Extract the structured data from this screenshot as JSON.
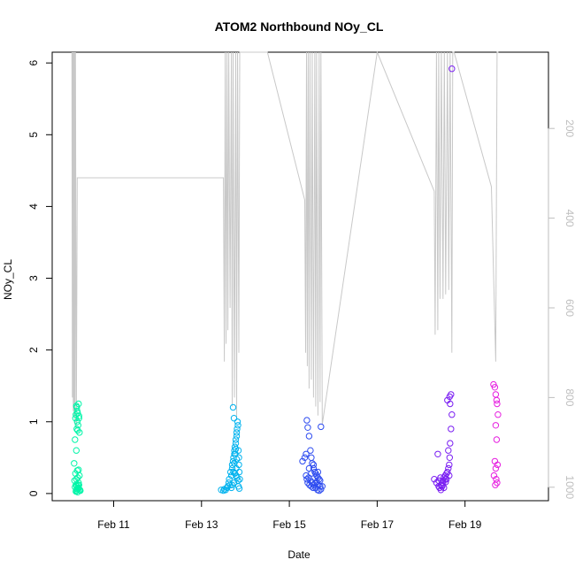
{
  "chart_data": {
    "type": "scatter",
    "title": "ATOM2 Northbound NOy_CL",
    "xlabel": "Date",
    "ylabel": "NOy_CL",
    "x_ticks": [
      "Feb 11",
      "Feb 13",
      "Feb 15",
      "Feb 17",
      "Feb 19"
    ],
    "x_tick_values": [
      11,
      13,
      15,
      17,
      19
    ],
    "xlim": [
      9.6,
      20.9
    ],
    "y_ticks": [
      "0",
      "1",
      "2",
      "3",
      "4",
      "5",
      "6"
    ],
    "y_tick_values": [
      0,
      1,
      2,
      3,
      4,
      5,
      6
    ],
    "ylim": [
      -0.1,
      6.15
    ],
    "y2_ticks": [
      "200",
      "400",
      "600",
      "800",
      "1000"
    ],
    "y2_tick_values": [
      200,
      400,
      600,
      800,
      1000
    ],
    "y2lim": [
      1030,
      30
    ],
    "y2_reversed": true,
    "grid": false,
    "colors": {
      "alt_line": "#c8c8c8",
      "right_axis": "#bebebe",
      "series": [
        "#00f5a8",
        "#00b2ee",
        "#2e4cf0",
        "#7a1ef2",
        "#e61ee0"
      ]
    },
    "series": [
      {
        "flight": 1,
        "x": [
          10.15,
          10.16,
          10.17,
          10.18,
          10.2,
          10.14,
          10.21,
          10.13,
          10.17,
          10.19,
          10.16,
          10.22,
          10.12,
          10.18,
          10.21,
          10.15,
          10.1,
          10.17,
          10.13,
          10.2,
          10.15,
          10.18,
          10.22,
          10.11,
          10.14,
          10.2,
          10.16,
          10.19,
          10.18,
          10.22,
          10.15,
          10.14,
          10.2,
          10.23,
          10.21,
          10.12,
          10.18,
          10.16,
          10.24,
          10.19
        ],
        "y": [
          1.22,
          1.2,
          1.15,
          1.12,
          1.25,
          1.1,
          1.08,
          1.05,
          1.0,
          0.95,
          0.9,
          0.85,
          0.75,
          0.88,
          1.05,
          0.6,
          0.42,
          0.32,
          0.28,
          0.33,
          0.2,
          0.22,
          0.25,
          0.18,
          0.12,
          0.15,
          0.1,
          0.08,
          0.06,
          0.05,
          0.04,
          0.03,
          0.07,
          0.05,
          0.12,
          0.09,
          0.02,
          0.06,
          0.04,
          0.11
        ]
      },
      {
        "flight": 2,
        "x": [
          13.45,
          13.5,
          13.52,
          13.55,
          13.58,
          13.6,
          13.62,
          13.63,
          13.65,
          13.66,
          13.68,
          13.7,
          13.7,
          13.72,
          13.73,
          13.75,
          13.75,
          13.76,
          13.78,
          13.78,
          13.8,
          13.8,
          13.81,
          13.82,
          13.83,
          13.84,
          13.85,
          13.85,
          13.86,
          13.87,
          13.72,
          13.74,
          13.77,
          13.79,
          13.76,
          13.81,
          13.83,
          13.7,
          13.68,
          13.73,
          13.75,
          13.8,
          13.78,
          13.84,
          13.86,
          13.74,
          13.79
        ],
        "y": [
          0.05,
          0.04,
          0.06,
          0.05,
          0.08,
          0.1,
          0.15,
          0.2,
          0.12,
          0.3,
          0.25,
          0.35,
          0.4,
          0.45,
          0.5,
          0.55,
          0.6,
          0.65,
          0.7,
          0.75,
          0.8,
          0.85,
          0.9,
          1.0,
          0.95,
          0.6,
          0.5,
          0.4,
          0.3,
          0.2,
          1.2,
          1.05,
          0.55,
          0.35,
          0.28,
          0.22,
          0.18,
          0.12,
          0.08,
          0.3,
          0.42,
          0.48,
          0.62,
          0.1,
          0.07,
          0.15,
          0.25
        ]
      },
      {
        "flight": 3,
        "x": [
          15.3,
          15.35,
          15.38,
          15.4,
          15.42,
          15.45,
          15.48,
          15.5,
          15.52,
          15.55,
          15.58,
          15.6,
          15.62,
          15.65,
          15.68,
          15.7,
          15.72,
          15.42,
          15.46,
          15.5,
          15.54,
          15.58,
          15.62,
          15.66,
          15.7,
          15.4,
          15.44,
          15.48,
          15.52,
          15.56,
          15.6,
          15.64,
          15.68,
          15.72,
          15.75,
          15.45,
          15.55,
          15.65,
          15.38,
          15.5
        ],
        "y": [
          0.45,
          0.5,
          0.55,
          1.02,
          0.92,
          0.8,
          0.6,
          0.5,
          0.42,
          0.35,
          0.3,
          0.28,
          0.25,
          0.22,
          0.2,
          0.18,
          0.93,
          0.15,
          0.12,
          0.1,
          0.08,
          0.14,
          0.16,
          0.12,
          0.1,
          0.2,
          0.22,
          0.18,
          0.15,
          0.12,
          0.08,
          0.05,
          0.04,
          0.06,
          0.1,
          0.35,
          0.4,
          0.3,
          0.25,
          0.28
        ]
      },
      {
        "flight": 4,
        "x": [
          18.3,
          18.35,
          18.4,
          18.42,
          18.45,
          18.48,
          18.5,
          18.52,
          18.55,
          18.58,
          18.6,
          18.62,
          18.64,
          18.65,
          18.66,
          18.68,
          18.7,
          18.65,
          18.6,
          18.55,
          18.5,
          18.45,
          18.4,
          18.38,
          18.62,
          18.68,
          18.66,
          18.7,
          18.58,
          18.48,
          18.52,
          18.56,
          18.64,
          18.44
        ],
        "y": [
          0.2,
          0.15,
          0.1,
          0.08,
          0.05,
          0.12,
          0.18,
          0.22,
          0.25,
          0.28,
          0.3,
          0.35,
          0.4,
          0.5,
          0.7,
          0.9,
          1.1,
          1.35,
          1.3,
          0.2,
          0.15,
          0.12,
          0.18,
          0.55,
          0.6,
          1.38,
          1.25,
          5.92,
          0.2,
          0.1,
          0.08,
          0.16,
          0.25,
          0.22
        ]
      },
      {
        "flight": 5,
        "x": [
          19.65,
          19.68,
          19.7,
          19.72,
          19.73,
          19.75,
          19.7,
          19.72,
          19.68,
          19.74,
          19.66,
          19.71,
          19.73,
          19.69,
          19.7
        ],
        "y": [
          1.52,
          1.48,
          1.38,
          1.3,
          1.25,
          1.1,
          0.95,
          0.75,
          0.45,
          0.4,
          0.25,
          0.2,
          0.15,
          0.12,
          0.35
        ]
      }
    ],
    "altitude_line": {
      "x": [
        10.05,
        10.06,
        10.07,
        10.08,
        10.09,
        10.1,
        10.11,
        10.12,
        10.13,
        10.15,
        10.17,
        13.5,
        13.52,
        13.54,
        13.56,
        13.58,
        13.6,
        13.62,
        13.65,
        13.68,
        13.7,
        13.72,
        13.75,
        13.78,
        13.8,
        13.82,
        13.85,
        13.87,
        14.5,
        15.35,
        15.37,
        15.39,
        15.41,
        15.43,
        15.45,
        15.47,
        15.5,
        15.52,
        15.55,
        15.58,
        15.6,
        15.62,
        15.65,
        15.68,
        15.7,
        15.72,
        15.75,
        17.0,
        18.3,
        18.32,
        18.35,
        18.38,
        18.4,
        18.43,
        18.46,
        18.5,
        18.53,
        18.56,
        18.6,
        18.63,
        18.66,
        18.7,
        18.72,
        18.75,
        19.6,
        19.7,
        19.73,
        19.76
      ],
      "y": [
        30,
        800,
        30,
        830,
        30,
        840,
        30,
        860,
        30,
        870,
        310,
        310,
        720,
        30,
        680,
        30,
        650,
        30,
        600,
        30,
        820,
        30,
        800,
        30,
        850,
        30,
        700,
        30,
        30,
        360,
        700,
        30,
        730,
        30,
        780,
        30,
        760,
        30,
        800,
        30,
        820,
        30,
        840,
        30,
        810,
        30,
        860,
        30,
        340,
        660,
        30,
        650,
        30,
        580,
        30,
        580,
        30,
        570,
        30,
        560,
        30,
        700,
        30,
        30,
        330,
        720,
        30,
        30
      ]
    }
  }
}
